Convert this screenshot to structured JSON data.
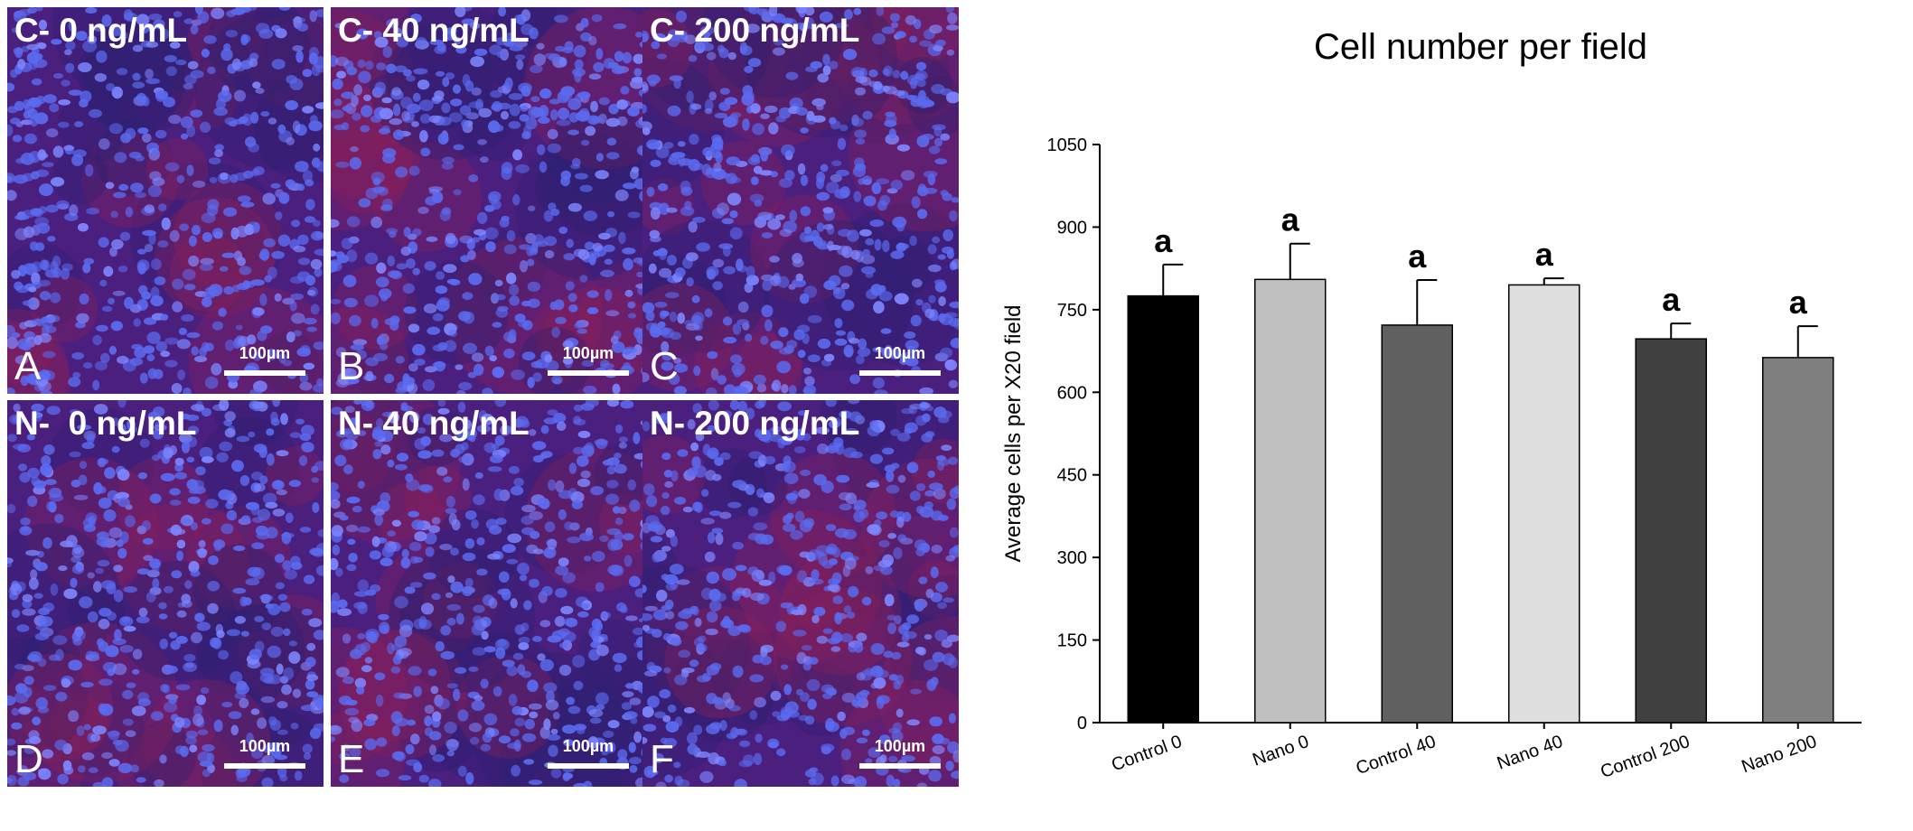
{
  "panels": [
    {
      "title": "C- 0 ng/mL",
      "letter": "A",
      "scale_label": "100µm",
      "image": "fluorescence-micrograph"
    },
    {
      "title": "C- 40 ng/mL",
      "letter": "B",
      "scale_label": "100µm",
      "image": "fluorescence-micrograph"
    },
    {
      "title": "C- 200 ng/mL",
      "letter": "C",
      "scale_label": "100µm",
      "image": "fluorescence-micrograph"
    },
    {
      "title": "N-  0 ng/mL",
      "letter": "D",
      "scale_label": "100µm",
      "image": "fluorescence-micrograph"
    },
    {
      "title": "N- 40 ng/mL",
      "letter": "E",
      "scale_label": "100µm",
      "image": "fluorescence-micrograph"
    },
    {
      "title": "N- 200 ng/mL",
      "letter": "F",
      "scale_label": "100µm",
      "image": "fluorescence-micrograph"
    }
  ],
  "chart_data": {
    "type": "bar",
    "title": "Cell number per field",
    "xlabel": "",
    "ylabel": "Average cells per X20 field",
    "ylim": [
      0,
      1050
    ],
    "yticks": [
      0,
      150,
      300,
      450,
      600,
      750,
      900,
      1050
    ],
    "grid": false,
    "categories": [
      "Control 0",
      "Nano 0",
      "Control 40",
      "Nano 40",
      "Control 200",
      "Nano 200"
    ],
    "values": [
      775,
      805,
      722,
      795,
      697,
      663
    ],
    "errors": [
      57,
      65,
      82,
      12,
      28,
      57
    ],
    "significance_labels": [
      "a",
      "a",
      "a",
      "a",
      "a",
      "a"
    ],
    "bar_colors": [
      "#000000",
      "#c0c0c0",
      "#606060",
      "#dedede",
      "#404040",
      "#7f7f7f"
    ]
  }
}
